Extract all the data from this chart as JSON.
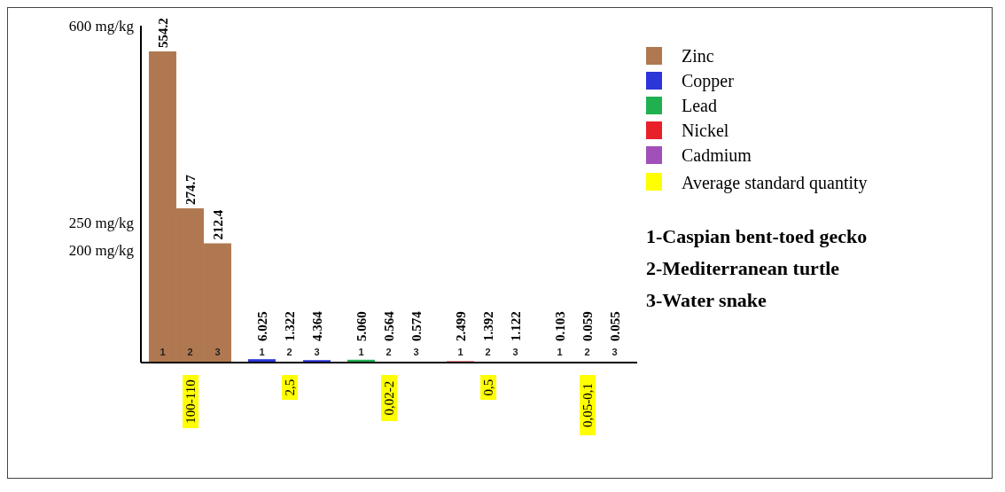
{
  "chart_data": {
    "type": "bar",
    "categories": [
      "100-110",
      "2,5",
      "0,02-2",
      "0,5",
      "0,05-0,1"
    ],
    "series": [
      {
        "name": "1",
        "colors": [
          "#b07850",
          "#2b35d8",
          "#20b050",
          "#e8202a",
          "#a050b8"
        ],
        "values": [
          554.2,
          6.025,
          5.06,
          2.499,
          0.103
        ],
        "value_labels": [
          "554.2",
          "6.025",
          "5.060",
          "2.499",
          "0.103"
        ]
      },
      {
        "name": "2",
        "colors": [
          "#b07850",
          "#2b35d8",
          "#20b050",
          "#e8202a",
          "#a050b8"
        ],
        "values": [
          274.7,
          1.322,
          0.564,
          1.392,
          0.059
        ],
        "value_labels": [
          "274.7",
          "1.322",
          "0.564",
          "1.392",
          "0.059"
        ]
      },
      {
        "name": "3",
        "colors": [
          "#b07850",
          "#2b35d8",
          "#20b050",
          "#e8202a",
          "#a050b8"
        ],
        "values": [
          212.4,
          4.364,
          0.574,
          1.122,
          0.055
        ],
        "value_labels": [
          "212.4",
          "4.364",
          "0.574",
          "1.122",
          "0.055"
        ]
      }
    ],
    "ylim": [
      0,
      600
    ],
    "yticks": [
      {
        "value": 200,
        "label": "200 mg/kg"
      },
      {
        "value": 250,
        "label": "250 mg/kg"
      },
      {
        "value": 600,
        "label": "600 mg/kg"
      }
    ],
    "legend": "right",
    "annotations": [
      "Zinc",
      "Copper",
      "Lead",
      "Nickel",
      "Cadmium",
      "Average standard quantity",
      "1-Caspian bent-toed gecko",
      "2-Mediterranean turtle",
      "3-Water snake"
    ]
  }
}
